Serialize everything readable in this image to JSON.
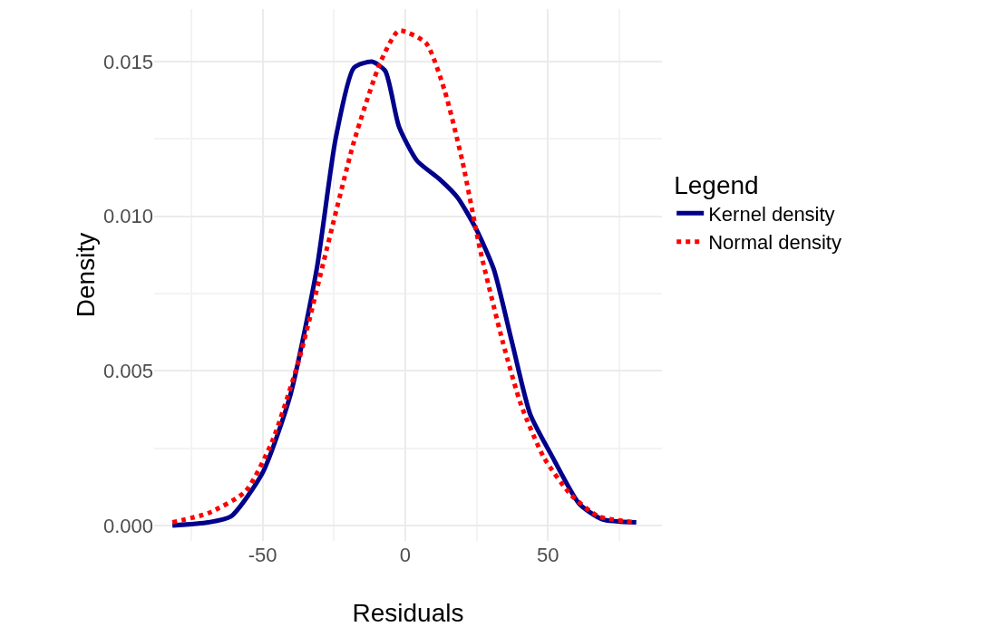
{
  "chart_data": {
    "type": "line",
    "xlabel": "Residuals",
    "ylabel": "Density",
    "legend_title": "Legend",
    "legend": "right",
    "grid": true,
    "xlim": [
      -88,
      90
    ],
    "xticks": [
      -50,
      0,
      50
    ],
    "ylim": [
      -0.0005,
      0.0167
    ],
    "yticks": [
      {
        "value": 0,
        "label": "0.000"
      },
      {
        "value": 0.005,
        "label": "0.005"
      },
      {
        "value": 0.01,
        "label": "0.010"
      },
      {
        "value": 0.015,
        "label": "0.015"
      }
    ],
    "series": [
      {
        "name": "Kernel density",
        "color": "#00008b",
        "line_style": "solid",
        "x": [
          -81.6,
          -69,
          -61,
          -50,
          -40.3,
          -31,
          -24.4,
          -18,
          -11.7,
          -7,
          -2.2,
          4.1,
          12,
          18.4,
          24.8,
          31,
          37.5,
          43.8,
          51.7,
          61,
          69,
          81
        ],
        "values": [
          0,
          0.0001,
          0.0003,
          0.0017,
          0.0042,
          0.0083,
          0.0125,
          0.0148,
          0.015,
          0.0147,
          0.0129,
          0.0118,
          0.0112,
          0.0106,
          0.0096,
          0.0083,
          0.0059,
          0.0036,
          0.0022,
          0.0007,
          0.0002,
          0.0001
        ]
      },
      {
        "name": "Normal density",
        "color": "#ff0000",
        "line_style": "dotted",
        "x": [
          -81.6,
          -69,
          -56,
          -46.7,
          -37.1,
          -27.6,
          -18,
          -8.6,
          -2.2,
          7.3,
          13.7,
          20,
          26.3,
          34.3,
          40.6,
          48.6,
          58,
          67.6,
          80.3
        ],
        "values": [
          0.0001,
          0.0004,
          0.0011,
          0.0027,
          0.0054,
          0.0089,
          0.0124,
          0.015,
          0.016,
          0.0156,
          0.0141,
          0.0118,
          0.0089,
          0.0059,
          0.0039,
          0.0022,
          0.001,
          0.0003,
          0.0001
        ]
      }
    ]
  }
}
